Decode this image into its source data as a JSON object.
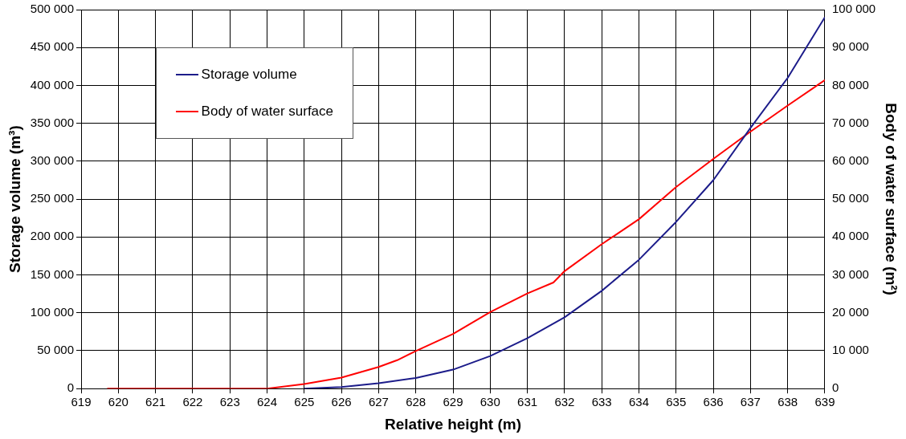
{
  "chart_data": {
    "type": "line",
    "xlabel": "Relative height (m)",
    "ylabel": "Storage volume (m³)",
    "y2label": "Body of water surface (m²)",
    "series": [
      {
        "name": "Storage volume",
        "color": "#1c1c8a",
        "x": [
          625,
          626,
          627,
          628,
          629,
          630,
          631,
          632,
          633,
          634,
          635,
          636,
          637,
          638,
          639
        ],
        "values": [
          0,
          2000,
          7000,
          14000,
          25000,
          43000,
          66500,
          94000,
          129000,
          170000,
          220000,
          275000,
          344000,
          410000,
          490000
        ]
      },
      {
        "name": "Body of water surface",
        "color": "#ff0000",
        "axis": "y2",
        "x": [
          619.7,
          624,
          625,
          626,
          627,
          627.5,
          628,
          629,
          630,
          631,
          631.7,
          632,
          633,
          634,
          635,
          636,
          637,
          638,
          639
        ],
        "values": [
          0,
          0,
          1200,
          2900,
          5700,
          7500,
          9900,
          14400,
          20200,
          25100,
          28000,
          31000,
          38100,
          44700,
          53200,
          60600,
          67800,
          74700,
          81400
        ]
      }
    ],
    "xlim": [
      619,
      639
    ],
    "xticks": [
      619,
      620,
      621,
      622,
      623,
      624,
      625,
      626,
      627,
      628,
      629,
      630,
      631,
      632,
      633,
      634,
      635,
      636,
      637,
      638,
      639
    ],
    "ylim": [
      0,
      500000
    ],
    "yticks": [
      0,
      {
        "value": 50000,
        "label": "50 000"
      },
      {
        "value": 100000,
        "label": "100 000"
      },
      {
        "value": 150000,
        "label": "150 000"
      },
      {
        "value": 200000,
        "label": "200 000"
      },
      {
        "value": 250000,
        "label": "250 000"
      },
      {
        "value": 300000,
        "label": "300 000"
      },
      {
        "value": 350000,
        "label": "350 000"
      },
      {
        "value": 400000,
        "label": "400 000"
      },
      {
        "value": 450000,
        "label": "450 000"
      },
      {
        "value": 500000,
        "label": "500 000"
      }
    ],
    "y2lim": [
      0,
      100000
    ],
    "y2ticks": [
      0,
      {
        "value": 10000,
        "label": "10 000"
      },
      {
        "value": 20000,
        "label": "20 000"
      },
      {
        "value": 30000,
        "label": "30 000"
      },
      {
        "value": 40000,
        "label": "40 000"
      },
      {
        "value": 50000,
        "label": "50 000"
      },
      {
        "value": 60000,
        "label": "60 000"
      },
      {
        "value": 70000,
        "label": "70 000"
      },
      {
        "value": 80000,
        "label": "80 000"
      },
      {
        "value": 90000,
        "label": "90 000"
      },
      {
        "value": 100000,
        "label": "100 000"
      }
    ],
    "grid": true,
    "legend": "top left",
    "marker": "none",
    "line_style": "solid"
  }
}
